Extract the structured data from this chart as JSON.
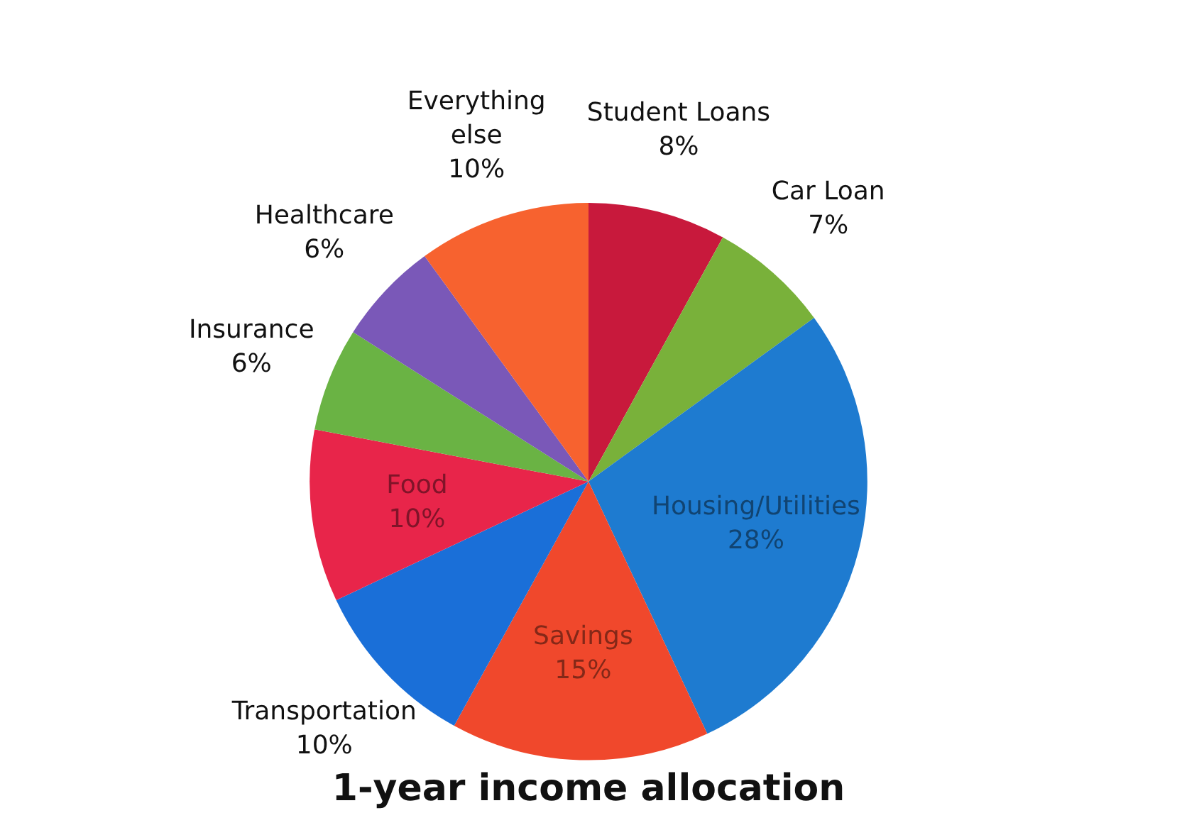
{
  "chart_data": {
    "type": "pie",
    "title": "1-year income allocation",
    "categories": [
      "Student Loans",
      "Car Loan",
      "Housing/Utilities",
      "Savings",
      "Transportation",
      "Food",
      "Insurance",
      "Healthcare",
      "Everything else"
    ],
    "values": [
      8,
      7,
      28,
      15,
      10,
      10,
      6,
      6,
      10
    ],
    "value_labels": [
      "8%",
      "7%",
      "28%",
      "15%",
      "10%",
      "10%",
      "6%",
      "6%",
      "10%"
    ],
    "colors": [
      "#c8193c",
      "#79b13a",
      "#1e7bd0",
      "#f0482c",
      "#1a6fd8",
      "#e8254a",
      "#6ab344",
      "#7a58b8",
      "#f7622f"
    ],
    "legend": false
  }
}
